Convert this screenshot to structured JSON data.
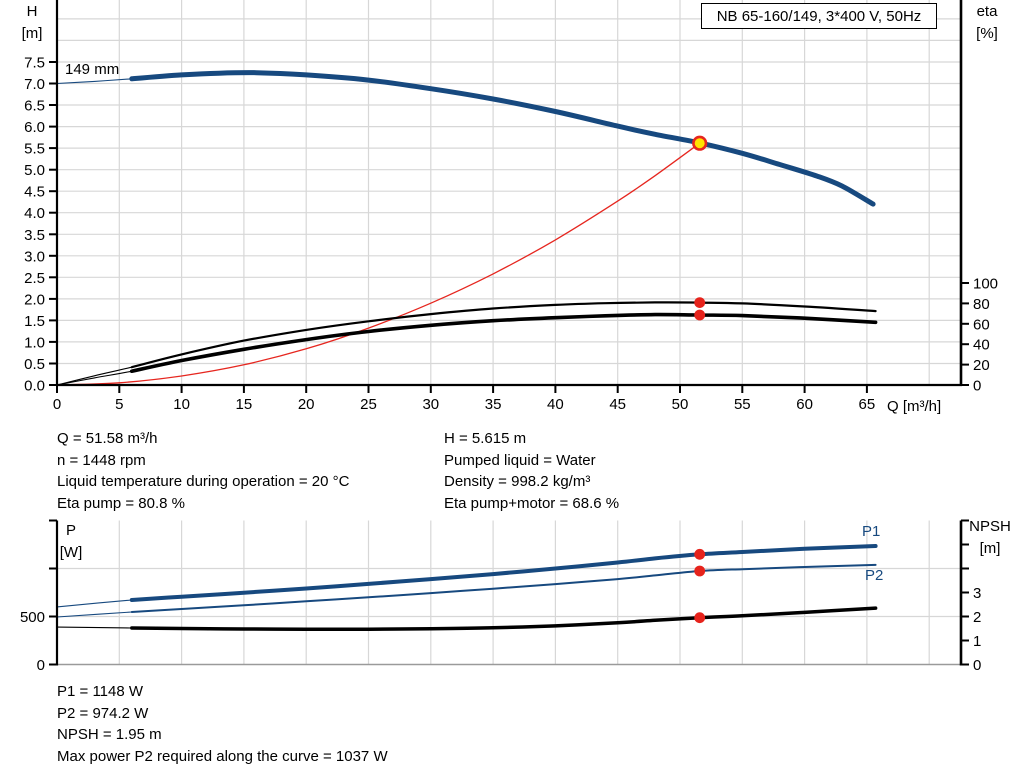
{
  "title_box": "NB 65-160/149, 3*400 V, 50Hz",
  "colors": {
    "curve_blue": "#17497f",
    "curve_red": "#e6261f",
    "dot_red": "#e6231c",
    "duty_fill": "#ffe400",
    "grid": "#d7d7d7",
    "gray_line": "#9a9a9a",
    "axis": "#000000"
  },
  "info_top": {
    "left": [
      "Q = 51.58 m³/h",
      "n = 1448 rpm",
      "Liquid temperature during operation = 20 °C",
      "Eta pump = 80.8 %"
    ],
    "right": [
      "H = 5.615 m",
      "Pumped liquid = Water",
      "Density = 998.2 kg/m³",
      "Eta pump+motor = 68.6 %"
    ]
  },
  "info_bottom": [
    "P1 = 1148 W",
    "P2 = 974.2 W",
    "NPSH = 1.95 m",
    "Max power P2 required along the curve = 1037 W"
  ],
  "chart_data": [
    {
      "type": "line",
      "title": "NB 65-160/149, 3*400 V, 50Hz",
      "impeller_label": "149 mm",
      "x_axis": {
        "label": "Q [m³/h]",
        "ticks": [
          0,
          5,
          10,
          15,
          20,
          25,
          30,
          35,
          40,
          45,
          50,
          55,
          60,
          65
        ],
        "range": [
          0,
          72.5
        ]
      },
      "y_left": {
        "label_line1": "H",
        "label_line2": "[m]",
        "ticks": [
          0,
          0.5,
          1,
          1.5,
          2,
          2.5,
          3,
          3.5,
          4,
          4.5,
          5,
          5.5,
          6,
          6.5,
          7,
          7.5
        ],
        "tick_labels": [
          "0.0",
          "0.5",
          "1.0",
          "1.5",
          "2.0",
          "2.5",
          "3.0",
          "3.5",
          "4.0",
          "4.5",
          "5.0",
          "5.5",
          "6.0",
          "6.5",
          "7.0",
          "7.5"
        ],
        "range": [
          0,
          8.9
        ]
      },
      "y_right": {
        "label_line1": "eta",
        "label_line2": "[%]",
        "ticks": [
          0,
          20,
          40,
          60,
          80,
          100
        ],
        "tick_labels": [
          "0",
          "20",
          "40",
          "60",
          "80",
          "100"
        ],
        "range": [
          0,
          100
        ]
      },
      "series": [
        {
          "name": "pump-curve-149mm",
          "axis": "left",
          "color": "blue",
          "width": 5,
          "thin_until": 6,
          "points": [
            [
              0,
              7.0
            ],
            [
              3,
              7.05
            ],
            [
              6,
              7.11
            ],
            [
              10,
              7.2
            ],
            [
              13,
              7.24
            ],
            [
              16,
              7.25
            ],
            [
              20,
              7.2
            ],
            [
              25,
              7.08
            ],
            [
              30,
              6.88
            ],
            [
              35,
              6.64
            ],
            [
              40,
              6.35
            ],
            [
              45,
              6.01
            ],
            [
              48,
              5.82
            ],
            [
              51.58,
              5.62
            ],
            [
              55,
              5.38
            ],
            [
              58,
              5.12
            ],
            [
              61,
              4.85
            ],
            [
              63,
              4.62
            ],
            [
              65.5,
              4.2
            ]
          ]
        },
        {
          "name": "system-curve",
          "axis": "left",
          "color": "red",
          "width": 1.3,
          "points": [
            [
              0,
              0
            ],
            [
              5,
              0.05
            ],
            [
              10,
              0.21
            ],
            [
              15,
              0.47
            ],
            [
              20,
              0.84
            ],
            [
              25,
              1.32
            ],
            [
              30,
              1.9
            ],
            [
              35,
              2.58
            ],
            [
              40,
              3.37
            ],
            [
              45,
              4.27
            ],
            [
              48,
              4.86
            ],
            [
              51.58,
              5.615
            ]
          ]
        },
        {
          "name": "eta-pump",
          "axis": "right",
          "color": "black",
          "width": 2.2,
          "thin_until": 6,
          "points": [
            [
              0,
              0
            ],
            [
              3,
              9
            ],
            [
              6,
              17.5
            ],
            [
              10,
              30
            ],
            [
              15,
              43.5
            ],
            [
              20,
              54
            ],
            [
              25,
              62.5
            ],
            [
              30,
              69.5
            ],
            [
              35,
              75
            ],
            [
              40,
              78.5
            ],
            [
              44,
              80.2
            ],
            [
              48,
              81
            ],
            [
              51.58,
              80.8
            ],
            [
              55,
              80
            ],
            [
              60,
              77
            ],
            [
              65.7,
              72.5
            ]
          ]
        },
        {
          "name": "eta-pump-motor",
          "axis": "right",
          "color": "black",
          "width": 3.6,
          "thin_until": 6,
          "points": [
            [
              0,
              0
            ],
            [
              3,
              7
            ],
            [
              6,
              13.5
            ],
            [
              10,
              24
            ],
            [
              15,
              35
            ],
            [
              20,
              44.5
            ],
            [
              25,
              52.5
            ],
            [
              30,
              58.5
            ],
            [
              35,
              63
            ],
            [
              40,
              66
            ],
            [
              44,
              67.8
            ],
            [
              48,
              69
            ],
            [
              51.58,
              68.6
            ],
            [
              55,
              68
            ],
            [
              60,
              65.5
            ],
            [
              65.7,
              61.5
            ]
          ]
        }
      ],
      "markers": [
        {
          "name": "duty-point",
          "style": "duty",
          "axis": "left",
          "q": 51.58,
          "v": 5.615
        },
        {
          "name": "eta-pump-point",
          "style": "dot",
          "axis": "right",
          "q": 51.58,
          "v": 80.8
        },
        {
          "name": "eta-pump-motor-point",
          "style": "dot",
          "axis": "right",
          "q": 51.58,
          "v": 68.6
        }
      ]
    },
    {
      "type": "line",
      "x_axis": {
        "label": "",
        "ticks": [],
        "range": [
          0,
          72.5
        ]
      },
      "y_left": {
        "label_line1": "P",
        "label_line2": "[W]",
        "ticks": [
          0,
          500,
          1000,
          1500
        ],
        "tick_labels": [
          "0",
          "500",
          "",
          ""
        ],
        "range": [
          0,
          1500
        ]
      },
      "y_right": {
        "label_line1": "NPSH",
        "label_line2": "[m]",
        "ticks": [
          0,
          1,
          2,
          3,
          4,
          5,
          6
        ],
        "tick_labels": [
          "0",
          "1",
          "2",
          "3",
          "",
          "",
          ""
        ],
        "range": [
          0,
          6
        ]
      },
      "series": [
        {
          "name": "p1-curve",
          "label": "P1",
          "axis": "left",
          "color": "blue",
          "width": 4,
          "thin_until": 6,
          "points": [
            [
              0,
              600
            ],
            [
              6,
              672
            ],
            [
              10,
              706
            ],
            [
              15,
              748
            ],
            [
              20,
              792
            ],
            [
              25,
              840
            ],
            [
              30,
              890
            ],
            [
              35,
              942
            ],
            [
              40,
              1000
            ],
            [
              45,
              1062
            ],
            [
              48,
              1105
            ],
            [
              51.58,
              1148
            ],
            [
              55,
              1172
            ],
            [
              60,
              1205
            ],
            [
              65.7,
              1234
            ]
          ]
        },
        {
          "name": "p2-curve",
          "label": "P2",
          "axis": "left",
          "color": "blue",
          "width": 2,
          "thin_until": 6,
          "points": [
            [
              0,
              495
            ],
            [
              6,
              547
            ],
            [
              10,
              578
            ],
            [
              15,
              617
            ],
            [
              20,
              658
            ],
            [
              25,
              700
            ],
            [
              30,
              744
            ],
            [
              35,
              790
            ],
            [
              40,
              838
            ],
            [
              45,
              890
            ],
            [
              48,
              928
            ],
            [
              51.58,
              974
            ],
            [
              55,
              993
            ],
            [
              60,
              1016
            ],
            [
              65.7,
              1037
            ]
          ]
        },
        {
          "name": "npsh-curve",
          "axis": "right",
          "color": "black",
          "width": 3.5,
          "thin_until": 6,
          "points": [
            [
              0,
              1.56
            ],
            [
              6,
              1.52
            ],
            [
              10,
              1.5
            ],
            [
              15,
              1.48
            ],
            [
              20,
              1.47
            ],
            [
              25,
              1.47
            ],
            [
              30,
              1.49
            ],
            [
              35,
              1.53
            ],
            [
              40,
              1.61
            ],
            [
              45,
              1.74
            ],
            [
              48,
              1.84
            ],
            [
              51.58,
              1.95
            ],
            [
              55,
              2.03
            ],
            [
              60,
              2.17
            ],
            [
              65.7,
              2.35
            ]
          ]
        }
      ],
      "markers": [
        {
          "name": "p1-point",
          "style": "dot",
          "axis": "left",
          "q": 51.58,
          "v": 1148
        },
        {
          "name": "p2-point",
          "style": "dot",
          "axis": "left",
          "q": 51.58,
          "v": 974.2
        },
        {
          "name": "npsh-point",
          "style": "dot",
          "axis": "right",
          "q": 51.58,
          "v": 1.95
        }
      ],
      "series_labels": [
        {
          "text": "P1",
          "series": "p1-curve"
        },
        {
          "text": "P2",
          "series": "p2-curve"
        }
      ]
    }
  ]
}
